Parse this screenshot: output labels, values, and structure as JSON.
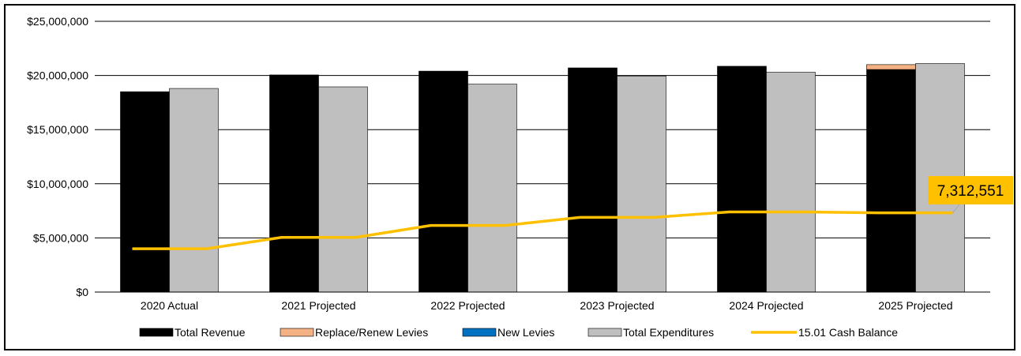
{
  "chart_data": {
    "type": "bar",
    "categories": [
      "2020 Actual",
      "2021 Projected",
      "2022 Projected",
      "2023 Projected",
      "2024 Projected",
      "2025 Projected"
    ],
    "series": [
      {
        "name": "Total Revenue",
        "kind": "stacked-bar",
        "color": "#000000",
        "values": [
          18500000,
          20050000,
          20400000,
          20700000,
          20850000,
          20550000
        ]
      },
      {
        "name": "Replace/Renew Levies",
        "kind": "stacked-bar",
        "color": "#F4B183",
        "values": [
          0,
          0,
          0,
          0,
          0,
          450000
        ]
      },
      {
        "name": "New Levies",
        "kind": "stacked-bar",
        "color": "#0070C0",
        "values": [
          0,
          0,
          0,
          0,
          0,
          0
        ]
      },
      {
        "name": "Total Expenditures",
        "kind": "bar",
        "color": "#BFBFBF",
        "values": [
          18800000,
          18950000,
          19200000,
          19950000,
          20300000,
          21100000
        ]
      },
      {
        "name": "15.01 Cash Balance",
        "kind": "line",
        "color": "#FFC000",
        "values": [
          4000000,
          5050000,
          6150000,
          6900000,
          7400000,
          7312551
        ]
      }
    ],
    "y_ticks": [
      "$0",
      "$5,000,000",
      "$10,000,000",
      "$15,000,000",
      "$20,000,000",
      "$25,000,000"
    ],
    "ylim": [
      0,
      25000000
    ],
    "grid": true,
    "legend_position": "bottom",
    "annotation": {
      "label": "7,312,551",
      "series": "15.01 Cash Balance",
      "category_index": 5,
      "fill": "#FFC000"
    }
  }
}
